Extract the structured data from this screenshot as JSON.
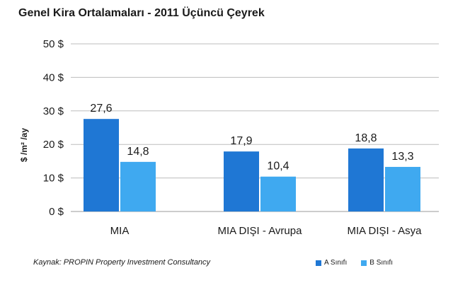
{
  "chart_data": {
    "type": "bar",
    "title": "Genel Kira Ortalamaları - 2011 Üçüncü Çeyrek",
    "ylabel": "$ /m² /ay",
    "xlabel": "",
    "categories": [
      "MIA",
      "MIA DIŞI - Avrupa",
      "MIA DIŞI - Asya"
    ],
    "series": [
      {
        "name": "A Sınıfı",
        "values": [
          27.6,
          17.9,
          18.8
        ],
        "color": "#1f77d4",
        "labels": [
          "27,6",
          "17,9",
          "18,8"
        ]
      },
      {
        "name": "B Sınıfı",
        "values": [
          14.8,
          10.4,
          13.3
        ],
        "color": "#3fa9f0",
        "labels": [
          "14,8",
          "10,4",
          "13,3"
        ]
      }
    ],
    "ylim": [
      0,
      50
    ],
    "yticks": [
      0,
      10,
      20,
      30,
      40,
      50
    ],
    "ytick_labels": [
      "0 $",
      "10 $",
      "20 $",
      "30 $",
      "40 $",
      "50 $"
    ],
    "grid": true,
    "legend_position": "bottom-right"
  },
  "source_text": "Kaynak: PROPIN Property Investment Consultancy"
}
